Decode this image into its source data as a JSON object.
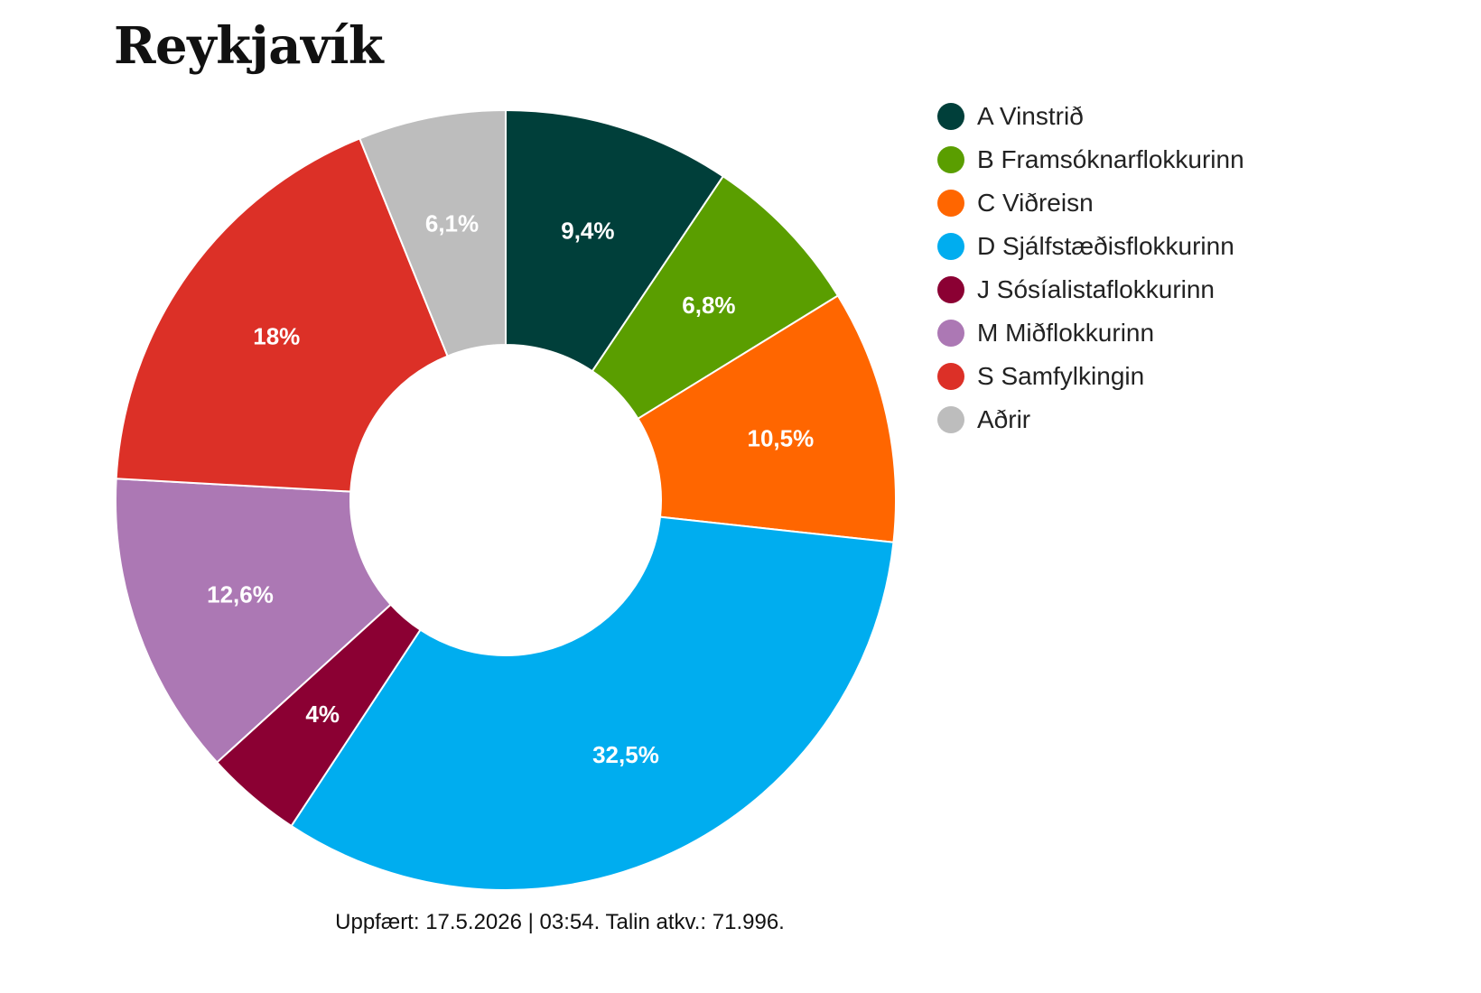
{
  "title": "Reykjavík",
  "chart_data": {
    "type": "pie",
    "donut": true,
    "legend_position": "right",
    "slices": [
      {
        "name": "A Vinstrið",
        "value": 9.4,
        "label": "9,4%",
        "color": "#003f3a"
      },
      {
        "name": "B Framsóknarflokkurinn",
        "value": 6.8,
        "label": "6,8%",
        "color": "#5a9e00"
      },
      {
        "name": "C Viðreisn",
        "value": 10.5,
        "label": "10,5%",
        "color": "#ff6600"
      },
      {
        "name": "D Sjálfstæðisflokkurinn",
        "value": 32.5,
        "label": "32,5%",
        "color": "#00adef"
      },
      {
        "name": "J Sósíalistaflokkurinn",
        "value": 4,
        "label": "4%",
        "color": "#8b0033"
      },
      {
        "name": "M Miðflokkurinn",
        "value": 12.6,
        "label": "12,6%",
        "color": "#ac78b4"
      },
      {
        "name": "S Samfylkingin",
        "value": 18,
        "label": "18%",
        "color": "#dc3027"
      },
      {
        "name": "Aðrir",
        "value": 6.1,
        "label": "6,1%",
        "color": "#bdbdbd"
      }
    ]
  },
  "footer": "Uppfært: 17.5.2026 | 03:54. Talin atkv.: 71.996."
}
